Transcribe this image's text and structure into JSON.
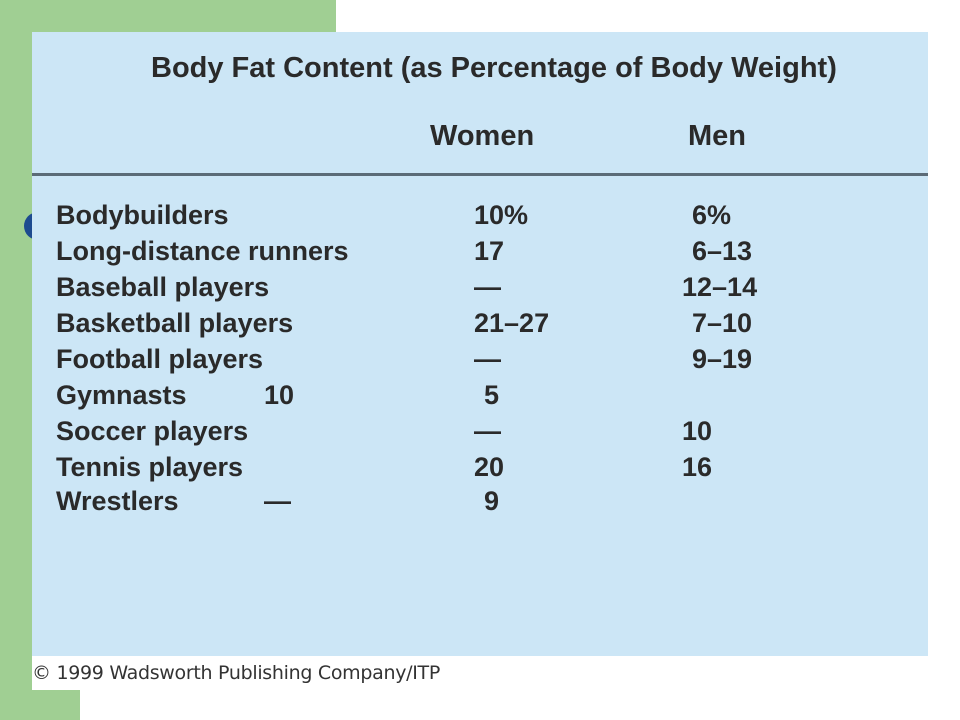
{
  "table": {
    "title": "Body Fat Content (as Percentage of Body Weight)",
    "columns": [
      "Women",
      "Men"
    ],
    "rows": [
      {
        "sport": "Bodybuilders",
        "women": "10%",
        "men": "6%"
      },
      {
        "sport": "Long-distance runners",
        "women": "17",
        "men": "6–13"
      },
      {
        "sport": "Baseball players",
        "women": "—",
        "men": "12–14"
      },
      {
        "sport": "Basketball players",
        "women": "21–27",
        "men": "7–10"
      },
      {
        "sport": "Football players",
        "women": "—",
        "men": "9–19"
      },
      {
        "sport": "Gymnasts",
        "women": "10",
        "men": "5"
      },
      {
        "sport": "Soccer players",
        "women": "—",
        "men": "10"
      },
      {
        "sport": "Tennis players",
        "women": "20",
        "men": "16"
      },
      {
        "sport": "Wrestlers",
        "women": "—",
        "men": "9"
      }
    ]
  },
  "copyright": "© 1999 Wadsworth Publishing Company/ITP",
  "colors": {
    "panel": "#cce6f6",
    "slide_accent_green": "#a0cf93",
    "bullet_blue": "#1d4b8f"
  }
}
